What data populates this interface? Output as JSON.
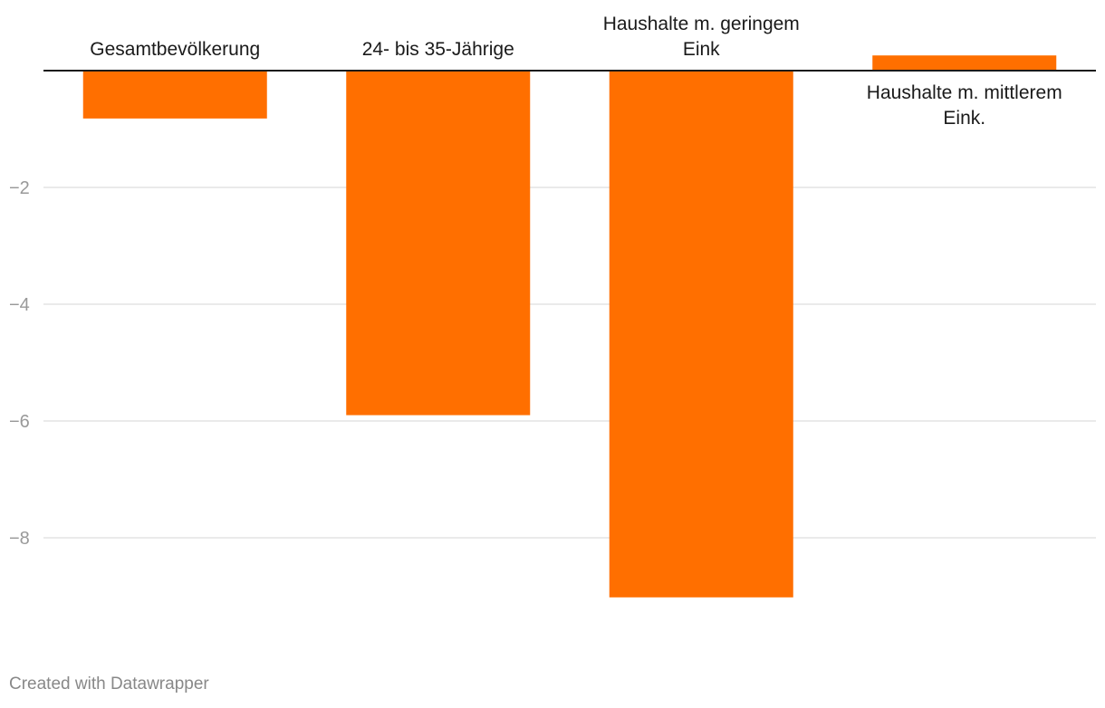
{
  "chart_data": {
    "type": "bar",
    "categories": [
      [
        "Gesamtbevölkerung"
      ],
      [
        "24- bis 35-Jährige"
      ],
      [
        "Haushalte m. geringem",
        "Eink"
      ],
      [
        "Haushalte m. mittlerem",
        "Eink."
      ]
    ],
    "values": [
      -0.82,
      -5.9,
      -9.02,
      0.26
    ],
    "ylim": [
      -10,
      0.5
    ],
    "yticks": [
      -2,
      -4,
      -6,
      -8
    ],
    "ytick_labels": [
      "−2",
      "−4",
      "−6",
      "−8"
    ],
    "grid": true,
    "title": "",
    "xlabel": "",
    "ylabel": "",
    "bar_color": "#ff6f00"
  },
  "footer": {
    "credit": "Created with Datawrapper"
  }
}
